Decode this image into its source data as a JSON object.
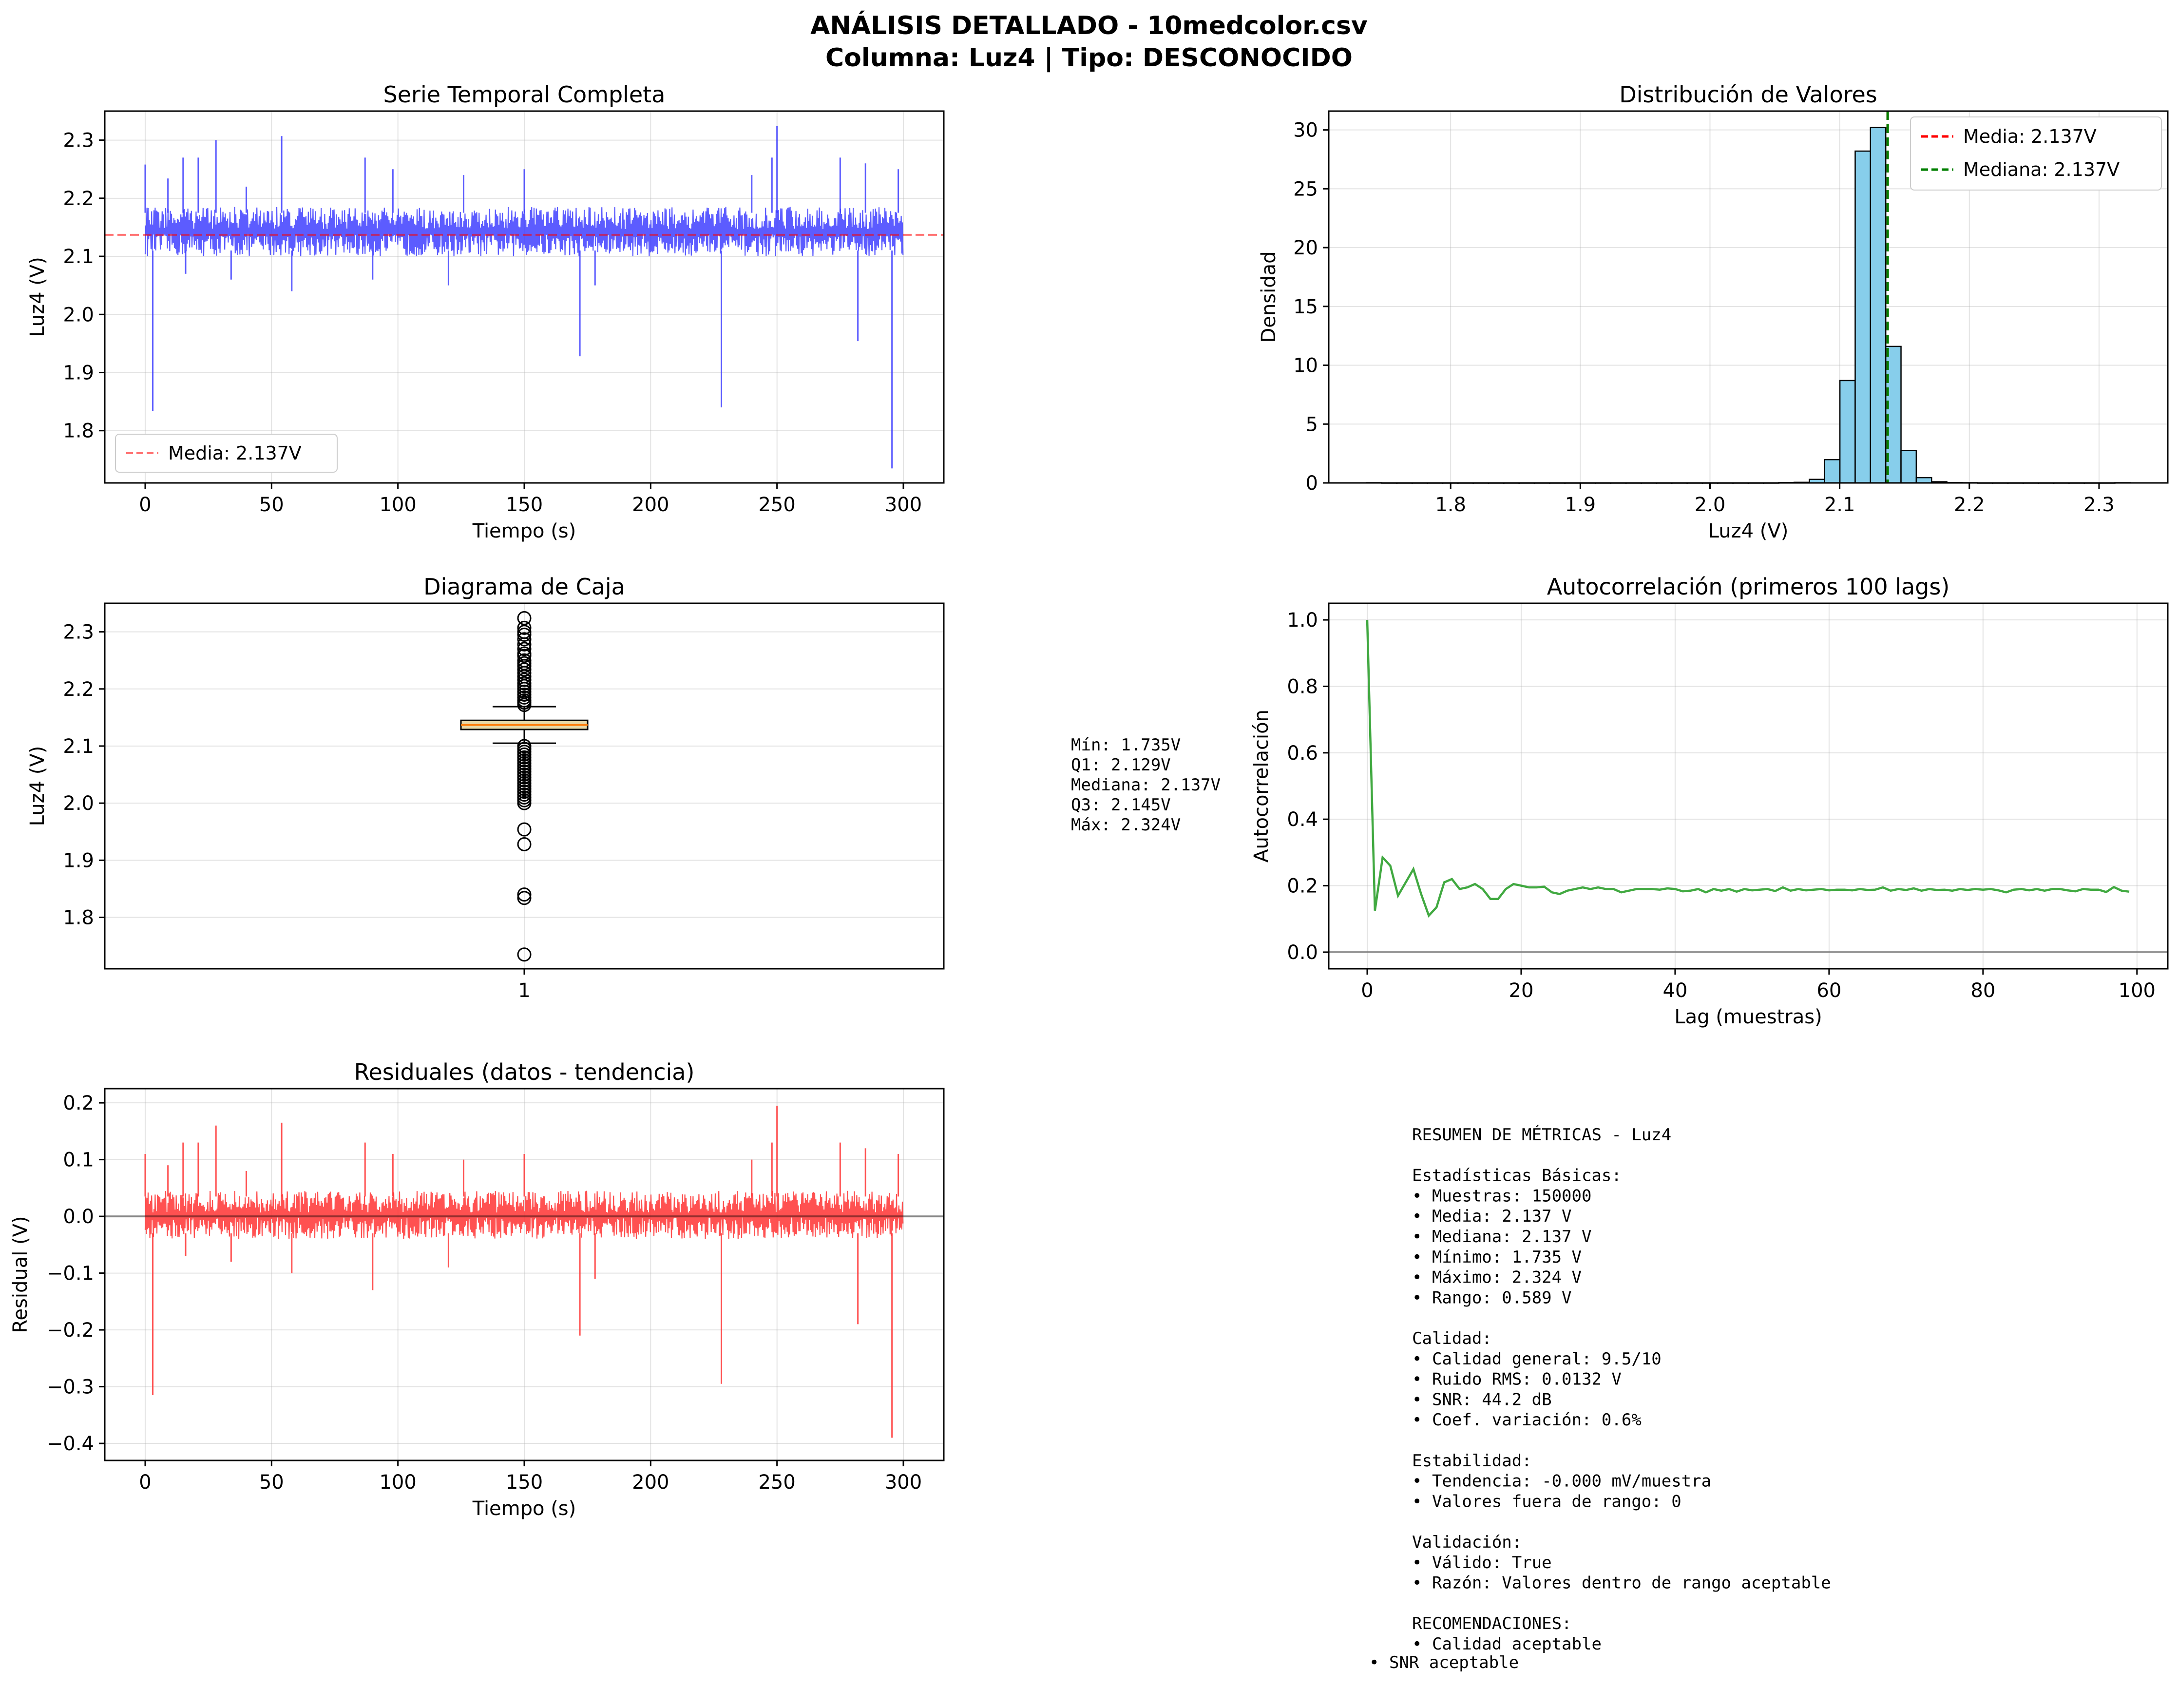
{
  "header": {
    "title_line1": "ANÁLISIS DETALLADO - 10medcolor.csv",
    "title_line2": "Columna: Luz4 | Tipo: DESCONOCIDO"
  },
  "colors": {
    "timeseries": "#3333ff",
    "mean_line": "#ff0000",
    "median_line": "#007f00",
    "hist_fill": "#87ceeb",
    "box_fill": "#e8d8a8",
    "autocorr": "#2ca02c",
    "residual": "#ff3333",
    "zero_line": "#808080"
  },
  "chart_data": [
    {
      "id": "serie-temporal",
      "type": "line",
      "title": "Serie Temporal Completa",
      "xlabel": "Tiempo (s)",
      "ylabel": "Luz4 (V)",
      "xlim": [
        -16,
        316
      ],
      "ylim": [
        1.71,
        2.35
      ],
      "xticks": [
        0,
        50,
        100,
        150,
        200,
        250,
        300
      ],
      "yticks": [
        1.8,
        1.9,
        2.0,
        2.1,
        2.2,
        2.3
      ],
      "ytick_labels": [
        "1.8",
        "1.9",
        "2.0",
        "2.1",
        "2.2",
        "2.3"
      ],
      "grid": true,
      "band": {
        "x_start": 0,
        "x_end": 300,
        "low": 2.1,
        "high": 2.185
      },
      "spikes": [
        {
          "x": 0.0,
          "y": 2.258
        },
        {
          "x": 3.0,
          "y": 1.834
        },
        {
          "x": 9.0,
          "y": 2.234
        },
        {
          "x": 15.0,
          "y": 2.27
        },
        {
          "x": 16.0,
          "y": 2.07
        },
        {
          "x": 21.0,
          "y": 2.27
        },
        {
          "x": 28.0,
          "y": 2.3
        },
        {
          "x": 34.0,
          "y": 2.06
        },
        {
          "x": 40.0,
          "y": 2.22
        },
        {
          "x": 54.0,
          "y": 2.307
        },
        {
          "x": 58.0,
          "y": 2.04
        },
        {
          "x": 87.0,
          "y": 2.27
        },
        {
          "x": 90.0,
          "y": 2.06
        },
        {
          "x": 98.0,
          "y": 2.25
        },
        {
          "x": 120.0,
          "y": 2.05
        },
        {
          "x": 126.0,
          "y": 2.24
        },
        {
          "x": 150.0,
          "y": 2.25
        },
        {
          "x": 172.0,
          "y": 1.928
        },
        {
          "x": 178.0,
          "y": 2.05
        },
        {
          "x": 228.0,
          "y": 1.84
        },
        {
          "x": 240.0,
          "y": 2.24
        },
        {
          "x": 248.0,
          "y": 2.27
        },
        {
          "x": 250.0,
          "y": 2.324
        },
        {
          "x": 275.0,
          "y": 2.27
        },
        {
          "x": 282.0,
          "y": 1.954
        },
        {
          "x": 285.0,
          "y": 2.26
        },
        {
          "x": 295.5,
          "y": 1.735
        },
        {
          "x": 298.0,
          "y": 2.25
        }
      ],
      "hline": {
        "y": 2.137
      },
      "legend": [
        {
          "label": "Media: 2.137V",
          "style": "dashed"
        }
      ],
      "legend_position": "lower-left"
    },
    {
      "id": "distribucion",
      "type": "bar",
      "title": "Distribución de Valores",
      "xlabel": "Luz4 (V)",
      "ylabel": "Densidad",
      "xlim": [
        1.706,
        2.353
      ],
      "ylim": [
        0,
        31.6
      ],
      "xticks": [
        1.8,
        1.9,
        2.0,
        2.1,
        2.2,
        2.3
      ],
      "xtick_labels": [
        "1.8",
        "1.9",
        "2.0",
        "2.1",
        "2.2",
        "2.3"
      ],
      "yticks": [
        0,
        5,
        10,
        15,
        20,
        25,
        30
      ],
      "grid": true,
      "bin_start": 1.735,
      "bin_width": 0.01178,
      "values": [
        0.02,
        0,
        0,
        0,
        0,
        0,
        0,
        0,
        0,
        0,
        0,
        0,
        0,
        0,
        0,
        0,
        0,
        0,
        0,
        0,
        0,
        0,
        0,
        0,
        0,
        0,
        0,
        0.03,
        0.05,
        0.3,
        1.98,
        8.7,
        28.2,
        30.2,
        11.6,
        2.75,
        0.45,
        0.1,
        0.03,
        0.02,
        0,
        0,
        0,
        0,
        0,
        0,
        0,
        0,
        0,
        0.02
      ],
      "vlines": [
        {
          "x": 2.137,
          "kind": "mean"
        },
        {
          "x": 2.137,
          "kind": "median"
        }
      ],
      "legend": [
        {
          "label": "Media: 2.137V",
          "kind": "mean"
        },
        {
          "label": "Mediana: 2.137V",
          "kind": "median"
        }
      ],
      "legend_position": "top-right"
    },
    {
      "id": "diagrama-caja",
      "type": "box",
      "title": "Diagrama de Caja",
      "ylabel": "Luz4 (V)",
      "xticks": [
        1
      ],
      "xtick_labels": [
        "1"
      ],
      "ylim": [
        1.71,
        2.35
      ],
      "yticks": [
        1.8,
        1.9,
        2.0,
        2.1,
        2.2,
        2.3
      ],
      "ytick_labels": [
        "1.8",
        "1.9",
        "2.0",
        "2.1",
        "2.2",
        "2.3"
      ],
      "grid": true,
      "q1": 2.129,
      "median": 2.137,
      "q3": 2.145,
      "whisker_low": 2.105,
      "whisker_high": 2.169,
      "outliers": [
        2.324,
        2.307,
        2.3,
        2.295,
        2.287,
        2.278,
        2.27,
        2.262,
        2.258,
        2.25,
        2.245,
        2.24,
        2.234,
        2.228,
        2.222,
        2.216,
        2.21,
        2.205,
        2.2,
        2.195,
        2.19,
        2.185,
        2.18,
        2.176,
        2.172,
        2.1,
        2.095,
        2.09,
        2.085,
        2.08,
        2.075,
        2.07,
        2.065,
        2.06,
        2.055,
        2.05,
        2.045,
        2.04,
        2.035,
        2.03,
        2.025,
        2.02,
        2.015,
        2.01,
        2.005,
        2.0,
        1.954,
        1.928,
        1.84,
        1.834,
        1.735
      ],
      "stats_text": [
        "Mín: 1.735V",
        "Q1: 2.129V",
        "Mediana: 2.137V",
        "Q3: 2.145V",
        "Máx: 2.324V"
      ]
    },
    {
      "id": "autocorrelacion",
      "type": "line",
      "title": "Autocorrelación (primeros 100 lags)",
      "xlabel": "Lag (muestras)",
      "ylabel": "Autocorrelación",
      "xlim": [
        -5,
        104
      ],
      "ylim": [
        -0.05,
        1.05
      ],
      "xticks": [
        0,
        20,
        40,
        60,
        80,
        100
      ],
      "yticks": [
        0.0,
        0.2,
        0.4,
        0.6,
        0.8,
        1.0
      ],
      "ytick_labels": [
        "0.0",
        "0.2",
        "0.4",
        "0.6",
        "0.8",
        "1.0"
      ],
      "grid": true,
      "hline": {
        "y": 0
      },
      "y": [
        1.0,
        0.125,
        0.285,
        0.26,
        0.17,
        0.21,
        0.25,
        0.175,
        0.11,
        0.135,
        0.21,
        0.22,
        0.19,
        0.195,
        0.205,
        0.19,
        0.16,
        0.16,
        0.19,
        0.205,
        0.2,
        0.195,
        0.195,
        0.197,
        0.18,
        0.175,
        0.185,
        0.19,
        0.195,
        0.19,
        0.195,
        0.19,
        0.19,
        0.18,
        0.185,
        0.19,
        0.19,
        0.19,
        0.188,
        0.192,
        0.19,
        0.183,
        0.185,
        0.19,
        0.18,
        0.19,
        0.185,
        0.19,
        0.182,
        0.19,
        0.186,
        0.188,
        0.19,
        0.184,
        0.195,
        0.185,
        0.19,
        0.186,
        0.188,
        0.19,
        0.186,
        0.188,
        0.188,
        0.186,
        0.19,
        0.187,
        0.188,
        0.195,
        0.185,
        0.19,
        0.187,
        0.192,
        0.185,
        0.19,
        0.187,
        0.188,
        0.185,
        0.19,
        0.187,
        0.19,
        0.188,
        0.19,
        0.186,
        0.18,
        0.188,
        0.19,
        0.186,
        0.19,
        0.185,
        0.19,
        0.19,
        0.186,
        0.183,
        0.19,
        0.188,
        0.188,
        0.181,
        0.196,
        0.185,
        0.182
      ]
    },
    {
      "id": "residuales",
      "type": "line",
      "title": "Residuales (datos - tendencia)",
      "xlabel": "Tiempo (s)",
      "ylabel": "Residual (V)",
      "xlim": [
        -16,
        316
      ],
      "ylim": [
        -0.43,
        0.225
      ],
      "xticks": [
        0,
        50,
        100,
        150,
        200,
        250,
        300
      ],
      "yticks": [
        -0.4,
        -0.3,
        -0.2,
        -0.1,
        0.0,
        0.1,
        0.2
      ],
      "ytick_labels": [
        "−0.4",
        "−0.3",
        "−0.2",
        "−0.1",
        "0.0",
        "0.1",
        "0.2"
      ],
      "grid": true,
      "hline": {
        "y": 0
      },
      "band": {
        "x_start": 0,
        "x_end": 300,
        "low": -0.04,
        "high": 0.045
      },
      "spikes": [
        {
          "x": 0.0,
          "y": 0.11
        },
        {
          "x": 3.0,
          "y": -0.315
        },
        {
          "x": 9.0,
          "y": 0.09
        },
        {
          "x": 15.0,
          "y": 0.13
        },
        {
          "x": 16.0,
          "y": -0.07
        },
        {
          "x": 21.0,
          "y": 0.13
        },
        {
          "x": 28.0,
          "y": 0.16
        },
        {
          "x": 34.0,
          "y": -0.08
        },
        {
          "x": 40.0,
          "y": 0.08
        },
        {
          "x": 54.0,
          "y": 0.165
        },
        {
          "x": 58.0,
          "y": -0.1
        },
        {
          "x": 87.0,
          "y": 0.13
        },
        {
          "x": 90.0,
          "y": -0.13
        },
        {
          "x": 98.0,
          "y": 0.11
        },
        {
          "x": 120.0,
          "y": -0.09
        },
        {
          "x": 126.0,
          "y": 0.1
        },
        {
          "x": 150.0,
          "y": 0.11
        },
        {
          "x": 172.0,
          "y": -0.21
        },
        {
          "x": 178.0,
          "y": -0.11
        },
        {
          "x": 228.0,
          "y": -0.295
        },
        {
          "x": 240.0,
          "y": 0.1
        },
        {
          "x": 248.0,
          "y": 0.13
        },
        {
          "x": 250.0,
          "y": 0.195
        },
        {
          "x": 275.0,
          "y": 0.13
        },
        {
          "x": 282.0,
          "y": -0.19
        },
        {
          "x": 285.0,
          "y": 0.12
        },
        {
          "x": 295.5,
          "y": -0.39
        },
        {
          "x": 298.0,
          "y": 0.11
        }
      ]
    }
  ],
  "summary": {
    "lines": [
      "RESUMEN DE MÉTRICAS - Luz4",
      "",
      "Estadísticas Básicas:",
      "• Muestras: 150000",
      "• Media: 2.137 V",
      "• Mediana: 2.137 V",
      "• Mínimo: 1.735 V",
      "• Máximo: 2.324 V",
      "• Rango: 0.589 V",
      "",
      "Calidad:",
      "• Calidad general: 9.5/10",
      "• Ruido RMS: 0.0132 V",
      "• SNR: 44.2 dB",
      "• Coef. variación: 0.6%",
      "",
      "Estabilidad:",
      "• Tendencia: -0.000 mV/muestra",
      "• Valores fuera de rango: 0",
      "",
      "Validación:",
      "• Válido: True",
      "• Razón: Valores dentro de rango aceptable",
      "",
      "RECOMENDACIONES:",
      "• Calidad aceptable"
    ],
    "last_line": "• SNR aceptable"
  }
}
